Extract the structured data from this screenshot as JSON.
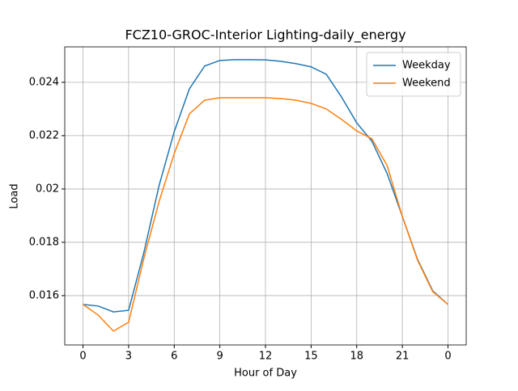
{
  "chart_data": {
    "type": "line",
    "title": "FCZ10-GROC-Interior Lighting-daily_energy",
    "x_label": "Hour of Day",
    "y_label": "Load",
    "x": [
      0,
      1,
      2,
      3,
      4,
      5,
      6,
      7,
      8,
      9,
      10,
      11,
      12,
      13,
      14,
      15,
      16,
      17,
      18,
      19,
      20,
      21,
      22,
      23,
      24
    ],
    "series": [
      {
        "name": "Weekday",
        "color": "#1f77b4",
        "values": [
          0.01567,
          0.01561,
          0.01539,
          0.01545,
          0.01761,
          0.02012,
          0.02215,
          0.02376,
          0.02461,
          0.02482,
          0.02485,
          0.02485,
          0.02484,
          0.02479,
          0.0247,
          0.02458,
          0.0243,
          0.02345,
          0.02248,
          0.02179,
          0.02058,
          0.01897,
          0.01736,
          0.01618,
          0.01567
        ]
      },
      {
        "name": "Weekend",
        "color": "#ff7f0e",
        "values": [
          0.01567,
          0.01527,
          0.01467,
          0.015,
          0.01739,
          0.01952,
          0.02133,
          0.02282,
          0.02333,
          0.02342,
          0.02342,
          0.02342,
          0.02342,
          0.02339,
          0.02333,
          0.02321,
          0.023,
          0.02261,
          0.02218,
          0.02188,
          0.02088,
          0.01897,
          0.01733,
          0.01615,
          0.01567
        ]
      }
    ],
    "xlim": [
      -1.2,
      25.2
    ],
    "xticks": [
      0,
      3,
      6,
      9,
      12,
      15,
      18,
      21,
      {
        "value": 24,
        "label": "0"
      }
    ],
    "ylim": [
      0.01415,
      0.02533
    ],
    "yticks": [
      0.016,
      0.018,
      0.02,
      0.022,
      0.024
    ],
    "grid": true,
    "legend": "upper right"
  }
}
